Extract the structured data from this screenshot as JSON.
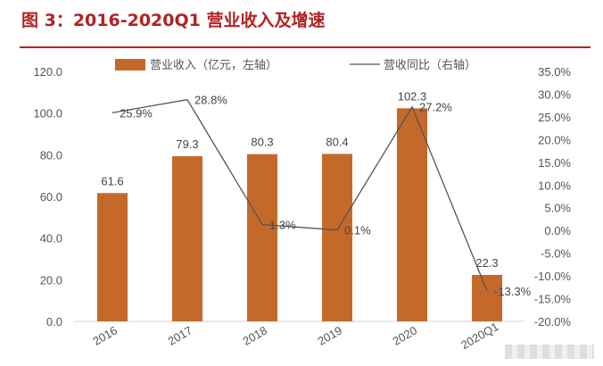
{
  "title": "图 3：2016-2020Q1 营业收入及增速",
  "chart_data": {
    "type": "bar",
    "categories": [
      "2016",
      "2017",
      "2018",
      "2019",
      "2020",
      "2020Q1"
    ],
    "series": [
      {
        "name": "营业收入（亿元，左轴）",
        "type": "bar",
        "axis": "left",
        "values": [
          61.6,
          79.3,
          80.3,
          80.4,
          102.3,
          22.3
        ],
        "labels": [
          "61.6",
          "79.3",
          "80.3",
          "80.4",
          "102.3",
          "22.3"
        ],
        "color": "#c5692b"
      },
      {
        "name": "营收同比（右轴）",
        "type": "line",
        "axis": "right",
        "values": [
          25.9,
          28.8,
          1.3,
          0.1,
          27.2,
          -13.3
        ],
        "labels": [
          "25.9%",
          "28.8%",
          "1.3%",
          "0.1%",
          "27.2%",
          "-13.3%"
        ],
        "color": "#555555"
      }
    ],
    "y_left": {
      "range": [
        0,
        120
      ],
      "ticks": [
        "0.0",
        "20.0",
        "40.0",
        "60.0",
        "80.0",
        "100.0",
        "120.0"
      ],
      "tick_values": [
        0,
        20,
        40,
        60,
        80,
        100,
        120
      ]
    },
    "y_right": {
      "range": [
        -20,
        35
      ],
      "ticks": [
        "-20.0%",
        "-15.0%",
        "-10.0%",
        "-5.0%",
        "0.0%",
        "5.0%",
        "10.0%",
        "15.0%",
        "20.0%",
        "25.0%",
        "30.0%",
        "35.0%"
      ],
      "tick_values": [
        -20,
        -15,
        -10,
        -5,
        0,
        5,
        10,
        15,
        20,
        25,
        30,
        35
      ]
    },
    "grid": false,
    "legend": "top"
  }
}
